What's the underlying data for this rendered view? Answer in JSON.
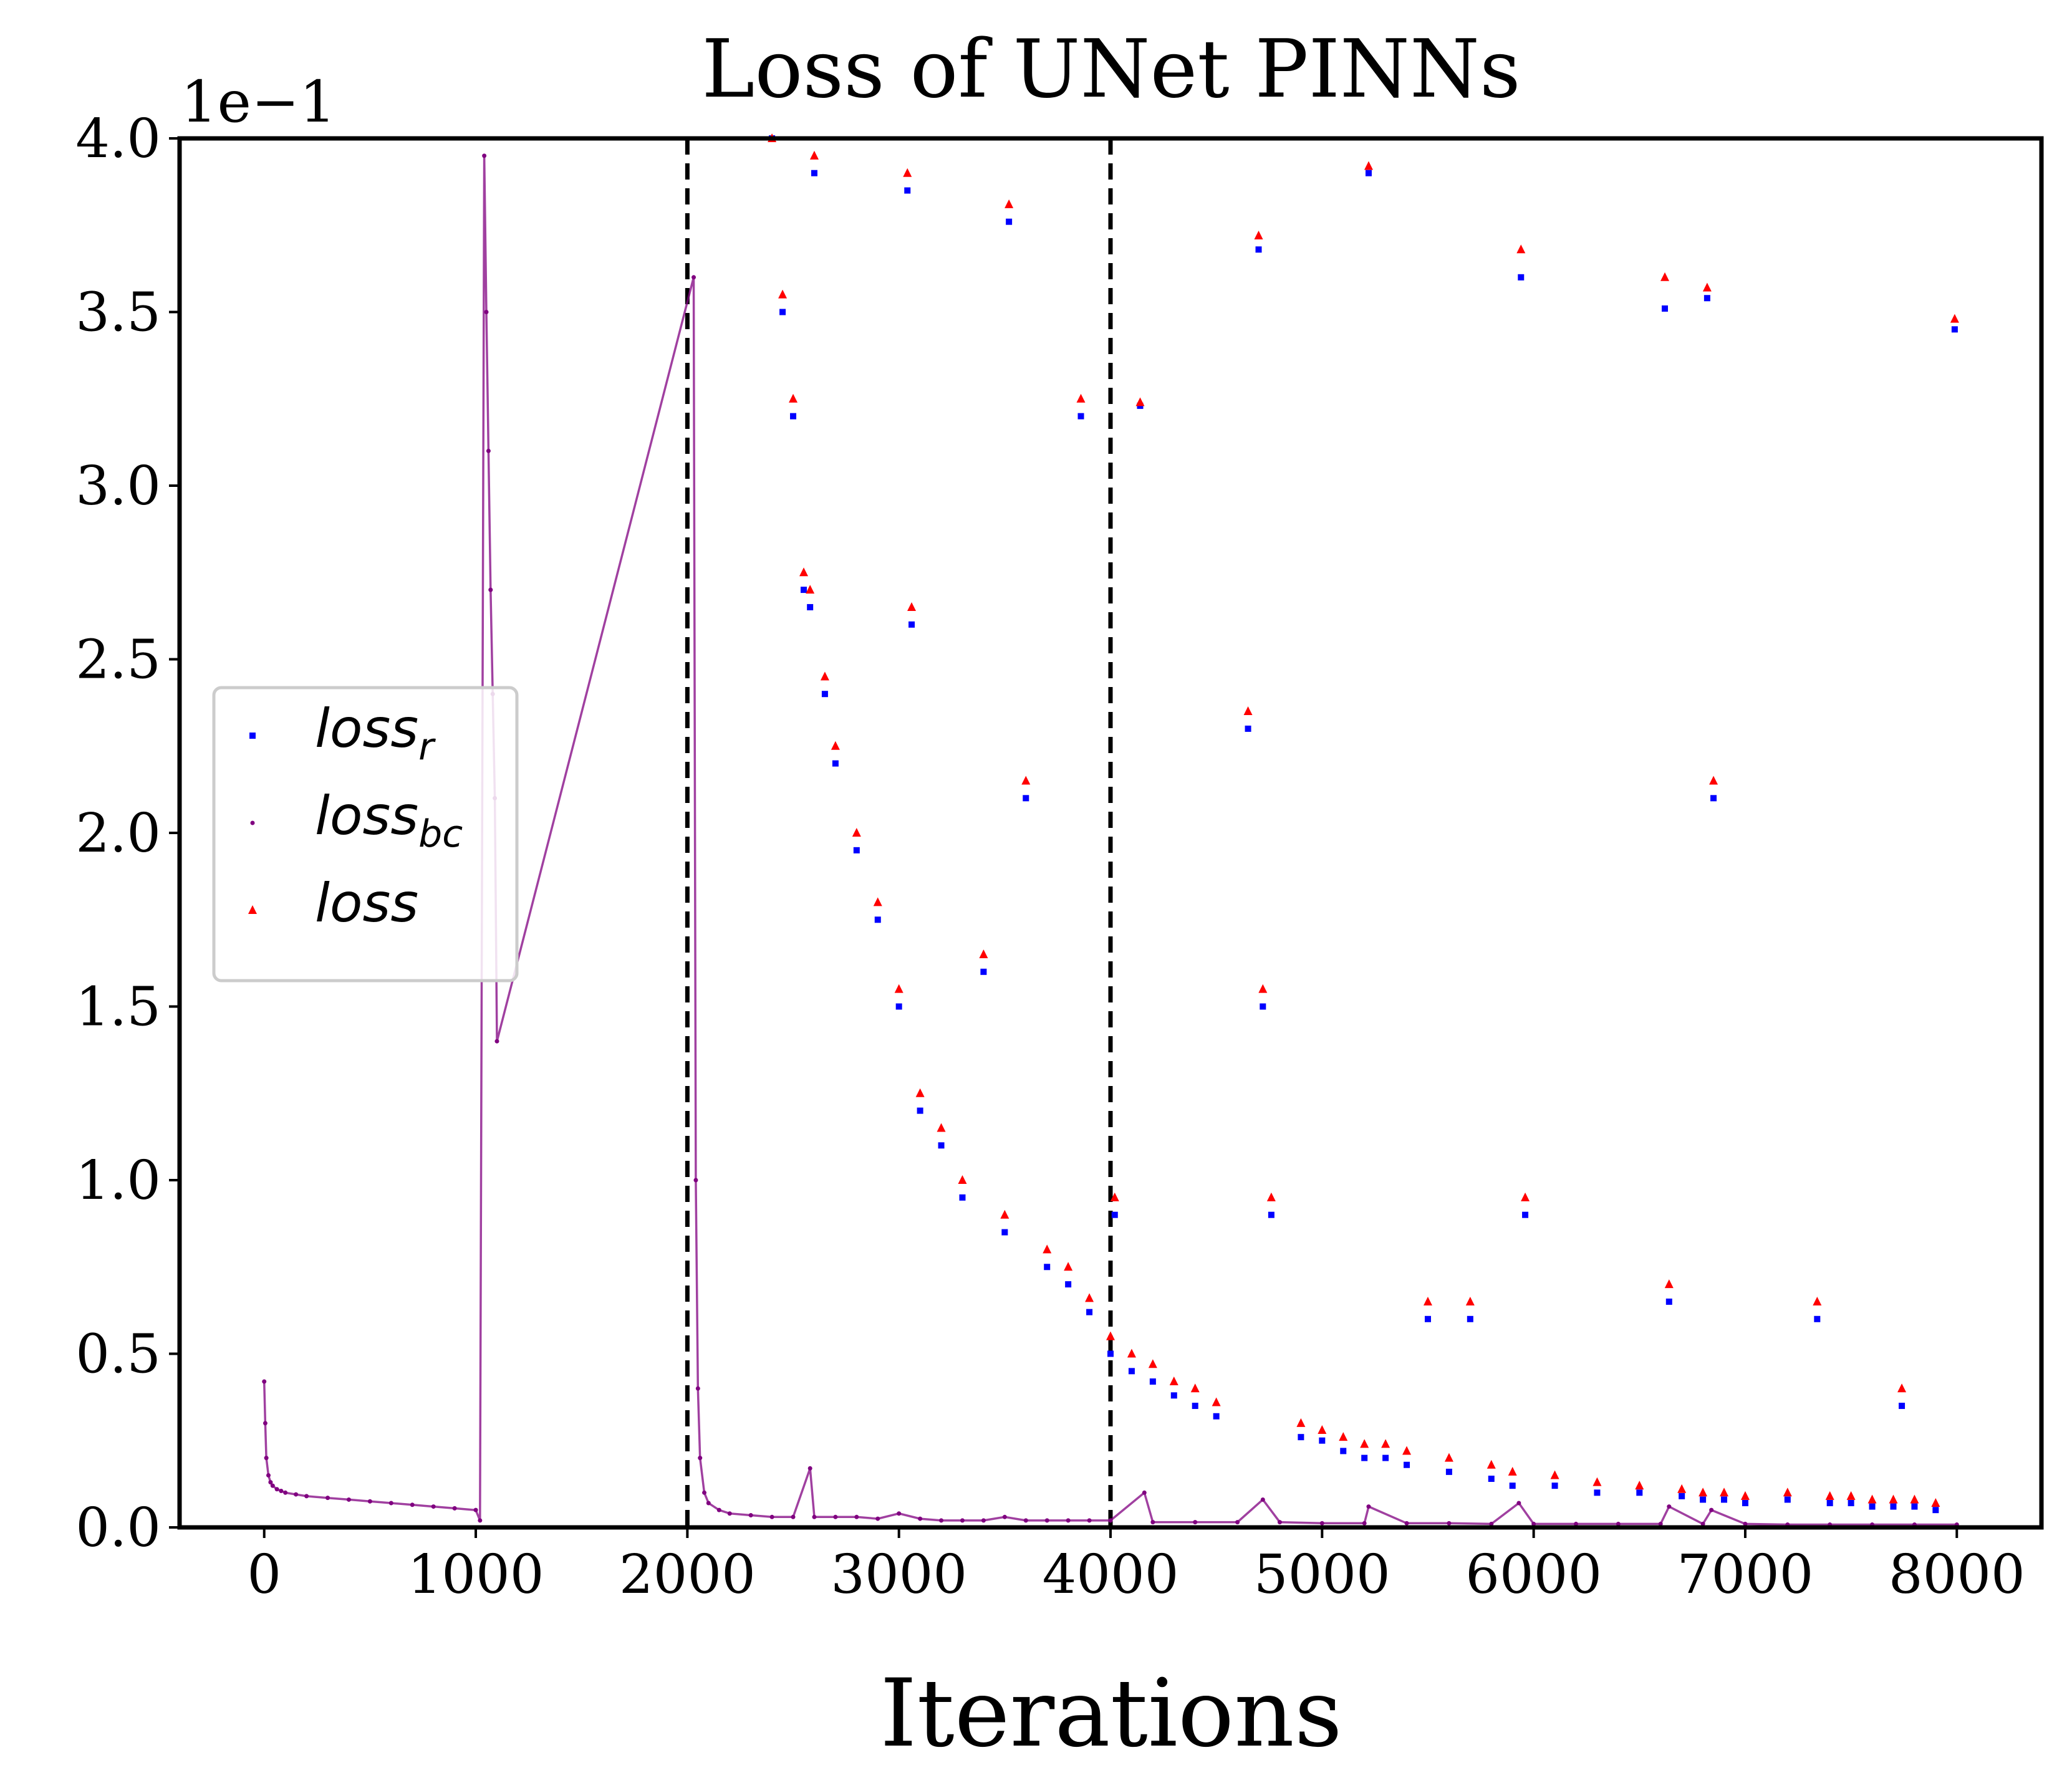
{
  "chart_data": {
    "type": "scatter",
    "title": "Loss of UNet PINNs",
    "xlabel": "Iterations",
    "ylabel": "",
    "y_offset_label": "1e−1",
    "xlim": [
      -400,
      8400
    ],
    "ylim": [
      0.0,
      4.0
    ],
    "x_ticks": [
      0,
      1000,
      2000,
      3000,
      4000,
      5000,
      6000,
      7000,
      8000
    ],
    "x_tick_labels": [
      "0",
      "1000",
      "2000",
      "3000",
      "4000",
      "5000",
      "6000",
      "7000",
      "8000"
    ],
    "y_ticks": [
      0.0,
      0.5,
      1.0,
      1.5,
      2.0,
      2.5,
      3.0,
      3.5,
      4.0
    ],
    "y_tick_labels": [
      "0.0",
      "0.5",
      "1.0",
      "1.5",
      "2.0",
      "2.5",
      "3.0",
      "3.5",
      "4.0"
    ],
    "vlines": [
      2000,
      4000
    ],
    "grid": false,
    "legend_position": "center-left",
    "series": [
      {
        "name": "loss_r",
        "legend_base": "loss",
        "legend_sub": "r",
        "marker": "square",
        "color": "#0000ff",
        "x": [
          2400,
          2450,
          2500,
          2550,
          2580,
          2600,
          2650,
          2700,
          2800,
          2900,
          3000,
          3040,
          3060,
          3100,
          3200,
          3300,
          3400,
          3500,
          3520,
          3600,
          3700,
          3800,
          3860,
          3900,
          4000,
          4020,
          4100,
          4140,
          4200,
          4300,
          4400,
          4500,
          4650,
          4700,
          4720,
          4760,
          4900,
          5000,
          5100,
          5200,
          5220,
          5300,
          5400,
          5500,
          5600,
          5700,
          5800,
          5900,
          5940,
          5960,
          6100,
          6300,
          6500,
          6620,
          6640,
          6700,
          6800,
          6820,
          6850,
          6900,
          7000,
          7200,
          7340,
          7400,
          7500,
          7600,
          7700,
          7740,
          7800,
          7900,
          7990
        ],
        "y": [
          4.0,
          3.5,
          3.2,
          2.7,
          2.65,
          3.9,
          2.4,
          2.2,
          1.95,
          1.75,
          1.5,
          3.85,
          2.6,
          1.2,
          1.1,
          0.95,
          1.6,
          0.85,
          3.76,
          2.1,
          0.75,
          0.7,
          3.2,
          0.62,
          0.5,
          0.9,
          0.45,
          3.23,
          0.42,
          0.38,
          0.35,
          0.32,
          2.3,
          3.68,
          1.5,
          0.9,
          0.26,
          0.25,
          0.22,
          0.2,
          3.9,
          0.2,
          0.18,
          0.6,
          0.16,
          0.6,
          0.14,
          0.12,
          3.6,
          0.9,
          0.12,
          0.1,
          0.1,
          3.51,
          0.65,
          0.09,
          0.08,
          3.54,
          2.1,
          0.08,
          0.07,
          0.08,
          0.6,
          0.07,
          0.07,
          0.06,
          0.06,
          0.35,
          0.06,
          0.05,
          3.45
        ]
      },
      {
        "name": "loss_bc",
        "legend_base": "loss",
        "legend_sub": "bc",
        "marker": "point",
        "color": "#800080",
        "x": [
          0,
          5,
          10,
          20,
          30,
          40,
          60,
          80,
          100,
          150,
          200,
          300,
          400,
          500,
          600,
          700,
          800,
          900,
          1000,
          1020,
          1040,
          1050,
          1060,
          1070,
          1080,
          1090,
          1100,
          2030,
          2040,
          2050,
          2060,
          2080,
          2100,
          2150,
          2200,
          2300,
          2400,
          2500,
          2580,
          2600,
          2700,
          2800,
          2900,
          3000,
          3100,
          3200,
          3300,
          3400,
          3500,
          3600,
          3700,
          3800,
          3900,
          4000,
          4160,
          4200,
          4400,
          4600,
          4720,
          4800,
          5000,
          5200,
          5220,
          5400,
          5600,
          5800,
          5930,
          6000,
          6200,
          6400,
          6600,
          6640,
          6800,
          6840,
          7000,
          7200,
          7400,
          7600,
          7800,
          8000
        ],
        "y": [
          0.42,
          0.3,
          0.2,
          0.15,
          0.13,
          0.12,
          0.11,
          0.105,
          0.1,
          0.095,
          0.09,
          0.085,
          0.08,
          0.075,
          0.07,
          0.065,
          0.06,
          0.055,
          0.05,
          0.02,
          3.95,
          3.5,
          3.1,
          2.7,
          2.4,
          2.1,
          1.4,
          3.6,
          1.0,
          0.4,
          0.2,
          0.1,
          0.07,
          0.05,
          0.04,
          0.035,
          0.03,
          0.03,
          0.17,
          0.03,
          0.03,
          0.03,
          0.025,
          0.04,
          0.025,
          0.02,
          0.02,
          0.02,
          0.03,
          0.02,
          0.02,
          0.02,
          0.02,
          0.02,
          0.1,
          0.015,
          0.015,
          0.015,
          0.08,
          0.015,
          0.012,
          0.012,
          0.06,
          0.012,
          0.012,
          0.01,
          0.07,
          0.01,
          0.01,
          0.01,
          0.01,
          0.06,
          0.01,
          0.05,
          0.01,
          0.008,
          0.008,
          0.008,
          0.008,
          0.008
        ]
      },
      {
        "name": "loss",
        "legend_base": "loss",
        "legend_sub": "",
        "marker": "triangle",
        "color": "#ff0000",
        "x": [
          2400,
          2450,
          2500,
          2550,
          2580,
          2600,
          2650,
          2700,
          2800,
          2900,
          3000,
          3040,
          3060,
          3100,
          3200,
          3300,
          3400,
          3500,
          3520,
          3600,
          3700,
          3800,
          3860,
          3900,
          4000,
          4020,
          4100,
          4140,
          4200,
          4300,
          4400,
          4500,
          4650,
          4700,
          4720,
          4760,
          4900,
          5000,
          5100,
          5200,
          5220,
          5300,
          5400,
          5500,
          5600,
          5700,
          5800,
          5900,
          5940,
          5960,
          6100,
          6300,
          6500,
          6620,
          6640,
          6700,
          6800,
          6820,
          6850,
          6900,
          7000,
          7200,
          7340,
          7400,
          7500,
          7600,
          7700,
          7740,
          7800,
          7900,
          7990
        ],
        "y": [
          4.0,
          3.55,
          3.25,
          2.75,
          2.7,
          3.95,
          2.45,
          2.25,
          2.0,
          1.8,
          1.55,
          3.9,
          2.65,
          1.25,
          1.15,
          1.0,
          1.65,
          0.9,
          3.81,
          2.15,
          0.8,
          0.75,
          3.25,
          0.66,
          0.55,
          0.95,
          0.5,
          3.24,
          0.47,
          0.42,
          0.4,
          0.36,
          2.35,
          3.72,
          1.55,
          0.95,
          0.3,
          0.28,
          0.26,
          0.24,
          3.92,
          0.24,
          0.22,
          0.65,
          0.2,
          0.65,
          0.18,
          0.16,
          3.68,
          0.95,
          0.15,
          0.13,
          0.12,
          3.6,
          0.7,
          0.11,
          0.1,
          3.57,
          2.15,
          0.1,
          0.09,
          0.1,
          0.65,
          0.09,
          0.09,
          0.08,
          0.08,
          0.4,
          0.08,
          0.07,
          3.48
        ]
      }
    ]
  }
}
